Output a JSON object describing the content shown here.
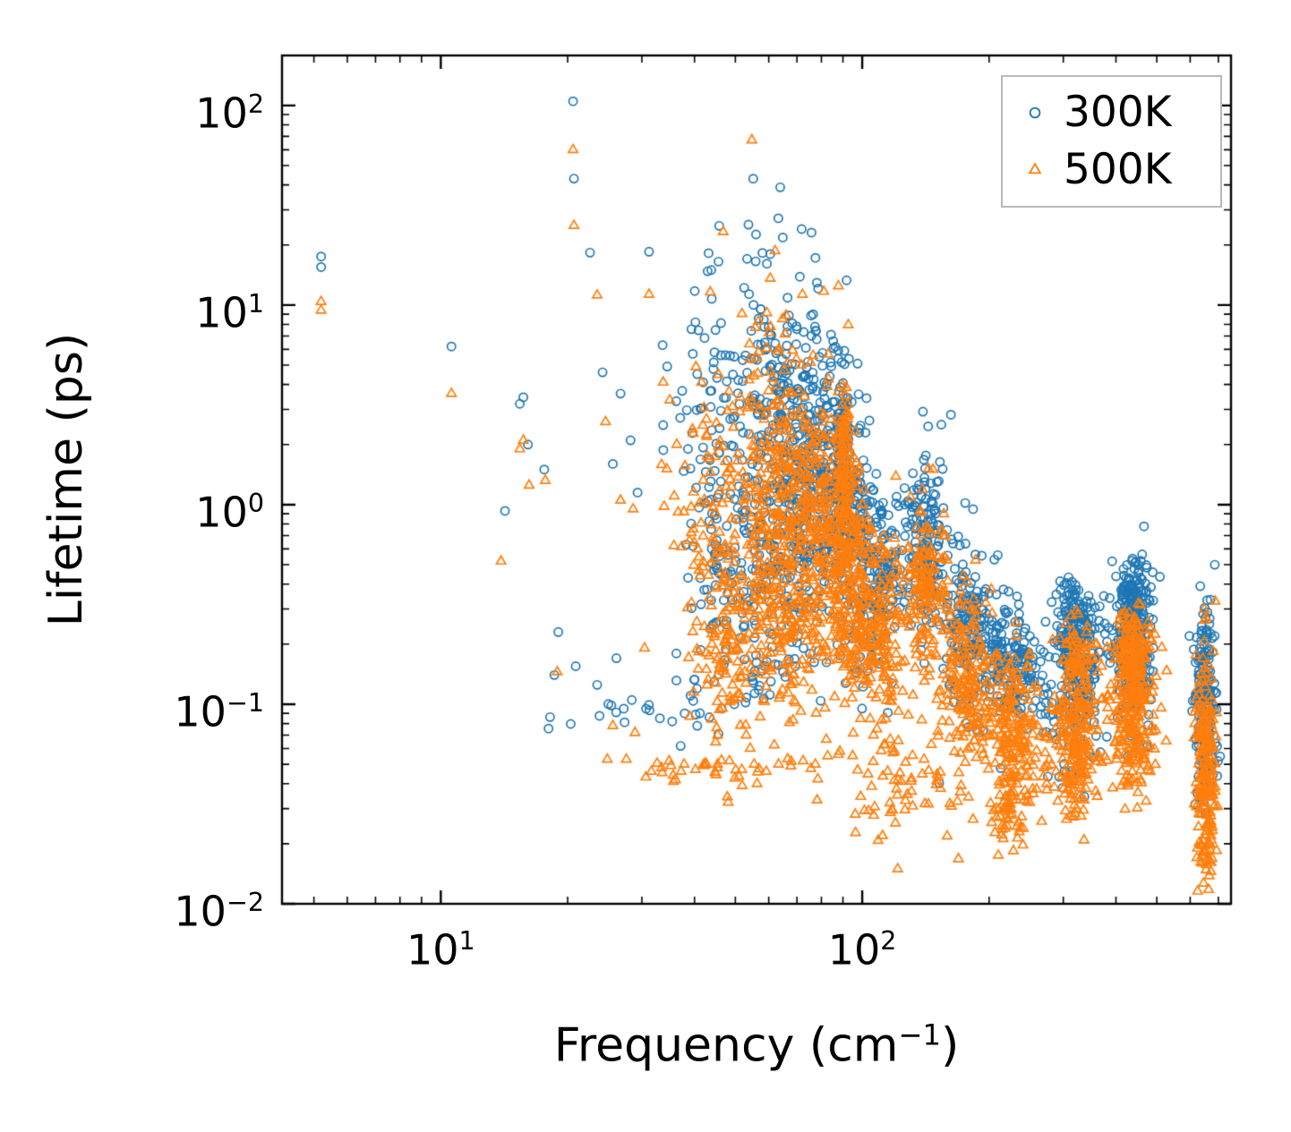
{
  "chart_data": {
    "type": "scatter",
    "title": "",
    "xlabel": "Frequency (cm⁻¹)",
    "xlabel_parts": {
      "pre": "Frequency (cm",
      "sup": "−1",
      "post": ")"
    },
    "ylabel": "Lifetime (ps)",
    "x_scale": "log",
    "y_scale": "log",
    "xlim": [
      4.2,
      750
    ],
    "ylim": [
      0.01,
      178
    ],
    "grid": false,
    "legend": {
      "position": "upper right"
    },
    "x_ticks": [
      {
        "base": "10",
        "exp": "1",
        "value": 10
      },
      {
        "base": "10",
        "exp": "2",
        "value": 100
      }
    ],
    "y_ticks": [
      {
        "base": "10",
        "exp": "2",
        "value": 100
      },
      {
        "base": "10",
        "exp": "1",
        "value": 10
      },
      {
        "base": "10",
        "exp": "0",
        "value": 1
      },
      {
        "base": "10",
        "exp": "−1",
        "value": 0.1
      },
      {
        "base": "10",
        "exp": "−2",
        "value": 0.01
      }
    ],
    "cluster_units": "log10 (cx,sx = log10 frequency center/spread; cy,sy = log10 lifetime center/spread; tilt = d(log y)/d(log x))",
    "series": [
      {
        "name": "300K",
        "color": "#1f77b4",
        "marker": "circle",
        "points": [
          [
            5.2,
            17.5
          ],
          [
            5.2,
            15.5
          ],
          [
            10.6,
            6.2
          ],
          [
            14.2,
            0.93
          ],
          [
            15.4,
            3.2
          ],
          [
            15.7,
            3.45
          ],
          [
            16.1,
            2.0
          ],
          [
            17.6,
            1.5
          ],
          [
            19.0,
            0.23
          ],
          [
            20.6,
            105
          ],
          [
            20.7,
            43
          ],
          [
            22.6,
            18.3
          ],
          [
            24.2,
            4.6
          ],
          [
            25.6,
            1.6
          ],
          [
            26.7,
            3.6
          ],
          [
            28.2,
            2.1
          ],
          [
            29.3,
            1.15
          ],
          [
            31.2,
            18.5
          ],
          [
            33.6,
            6.3
          ],
          [
            36.2,
            3.3
          ],
          [
            38.6,
            1.9
          ],
          [
            40.2,
            8.2
          ],
          [
            43.2,
            18.2
          ],
          [
            46.2,
            5.6
          ],
          [
            60.5,
            18.0
          ],
          [
            18.6,
            0.14
          ],
          [
            20.9,
            0.155
          ],
          [
            23.5,
            0.125
          ],
          [
            26.1,
            0.17
          ],
          [
            28.4,
            0.105
          ],
          [
            30.7,
            0.095
          ],
          [
            33.1,
            0.085
          ],
          [
            35.4,
            0.082
          ],
          [
            37.9,
            0.09
          ],
          [
            40.6,
            0.078
          ],
          [
            43.4,
            0.086
          ],
          [
            46.4,
            0.095
          ],
          [
            49.7,
            0.1
          ],
          [
            53.1,
            0.108
          ],
          [
            56.8,
            0.118
          ],
          [
            60.7,
            0.13
          ],
          [
            64.9,
            0.145
          ],
          [
            69.4,
            0.155
          ]
        ],
        "clusters": [
          {
            "cx": 1.56,
            "sx": 0.17,
            "cy": -0.98,
            "sy": 0.08,
            "n": 26,
            "tilt": 0.45
          },
          {
            "cx": 1.67,
            "sx": 0.05,
            "cy": 0.35,
            "sy": 0.42,
            "n": 110,
            "tilt": 0
          },
          {
            "cx": 1.68,
            "sx": 0.05,
            "cy": -0.45,
            "sy": 0.28,
            "n": 80,
            "tilt": 0
          },
          {
            "cx": 1.79,
            "sx": 0.04,
            "cy": 0.5,
            "sy": 0.38,
            "n": 160,
            "tilt": 0
          },
          {
            "cx": 1.8,
            "sx": 0.04,
            "cy": -0.2,
            "sy": 0.3,
            "n": 120,
            "tilt": 0
          },
          {
            "cx": 1.88,
            "sx": 0.035,
            "cy": 0.2,
            "sy": 0.4,
            "n": 230,
            "tilt": 0
          },
          {
            "cx": 1.96,
            "sx": 0.03,
            "cy": -0.05,
            "sy": 0.33,
            "n": 220,
            "tilt": -1.2
          },
          {
            "cx": 1.955,
            "sx": 0.008,
            "cy": 0.3,
            "sy": 0.25,
            "n": 60,
            "tilt": 0
          },
          {
            "cx": 2.04,
            "sx": 0.03,
            "cy": -0.35,
            "sy": 0.22,
            "n": 170,
            "tilt": -0.8
          },
          {
            "cx": 2.15,
            "sx": 0.025,
            "cy": -0.15,
            "sy": 0.22,
            "n": 150,
            "tilt": 0
          },
          {
            "cx": 2.25,
            "sx": 0.035,
            "cy": -0.62,
            "sy": 0.22,
            "n": 170,
            "tilt": -1
          },
          {
            "cx": 2.36,
            "sx": 0.035,
            "cy": -0.8,
            "sy": 0.15,
            "n": 150,
            "tilt": -0.5
          },
          {
            "cx": 2.43,
            "sx": 0.015,
            "cy": -0.95,
            "sy": 0.12,
            "n": 14,
            "tilt": 0
          },
          {
            "cx": 2.51,
            "sx": 0.028,
            "cy": -0.85,
            "sy": 0.22,
            "n": 220,
            "tilt": 0
          },
          {
            "cx": 2.51,
            "sx": 0.02,
            "cy": -0.52,
            "sy": 0.08,
            "n": 60,
            "tilt": 0
          },
          {
            "cx": 2.64,
            "sx": 0.025,
            "cy": -0.72,
            "sy": 0.2,
            "n": 260,
            "tilt": 0
          },
          {
            "cx": 2.64,
            "sx": 0.018,
            "cy": -0.45,
            "sy": 0.07,
            "n": 70,
            "tilt": 0
          },
          {
            "cx": 2.815,
            "sx": 0.012,
            "cy": -1.0,
            "sy": 0.24,
            "n": 200,
            "tilt": 0
          }
        ]
      },
      {
        "name": "500K",
        "color": "#ff7f0e",
        "marker": "triangle-up",
        "points": [
          [
            5.2,
            10.4
          ],
          [
            5.2,
            9.4
          ],
          [
            10.6,
            3.6
          ],
          [
            13.9,
            0.52
          ],
          [
            15.4,
            1.9
          ],
          [
            15.7,
            2.1
          ],
          [
            16.2,
            1.25
          ],
          [
            17.7,
            1.32
          ],
          [
            18.9,
            0.145
          ],
          [
            20.6,
            60
          ],
          [
            20.7,
            25
          ],
          [
            23.5,
            11.2
          ],
          [
            24.6,
            2.6
          ],
          [
            26.7,
            1.05
          ],
          [
            28.6,
            0.95
          ],
          [
            31.2,
            11.3
          ],
          [
            33.7,
            4.1
          ],
          [
            36.3,
            2.0
          ],
          [
            40.3,
            4.9
          ],
          [
            43.6,
            11.6
          ],
          [
            60.5,
            13.6
          ],
          [
            25.6,
            0.078
          ],
          [
            28.9,
            0.072
          ],
          [
            31.6,
            0.046
          ],
          [
            33.4,
            0.048
          ],
          [
            35.6,
            0.044
          ],
          [
            37.8,
            0.05
          ],
          [
            40.2,
            0.047
          ],
          [
            42.7,
            0.05
          ],
          [
            45.3,
            0.048
          ],
          [
            48.4,
            0.052
          ],
          [
            51.8,
            0.047
          ],
          [
            55.4,
            0.05
          ],
          [
            59.2,
            0.046
          ],
          [
            63.3,
            0.05
          ],
          [
            67.7,
            0.049
          ],
          [
            72.4,
            0.052
          ],
          [
            77.4,
            0.05
          ],
          [
            82.8,
            0.055
          ],
          [
            88.5,
            0.058
          ]
        ],
        "clusters": [
          {
            "cx": 1.65,
            "sx": 0.15,
            "cy": -1.33,
            "sy": 0.06,
            "n": 30,
            "tilt": 0.15
          },
          {
            "cx": 1.66,
            "sx": 0.05,
            "cy": -0.05,
            "sy": 0.42,
            "n": 120,
            "tilt": 0
          },
          {
            "cx": 1.68,
            "sx": 0.05,
            "cy": -0.7,
            "sy": 0.28,
            "n": 110,
            "tilt": 0
          },
          {
            "cx": 1.79,
            "sx": 0.04,
            "cy": 0.2,
            "sy": 0.4,
            "n": 160,
            "tilt": 0
          },
          {
            "cx": 1.8,
            "sx": 0.04,
            "cy": -0.55,
            "sy": 0.3,
            "n": 140,
            "tilt": 0
          },
          {
            "cx": 1.88,
            "sx": 0.035,
            "cy": -0.1,
            "sy": 0.4,
            "n": 260,
            "tilt": 0
          },
          {
            "cx": 1.96,
            "sx": 0.03,
            "cy": -0.3,
            "sy": 0.35,
            "n": 260,
            "tilt": -1.2
          },
          {
            "cx": 1.955,
            "sx": 0.008,
            "cy": 0.15,
            "sy": 0.3,
            "n": 80,
            "tilt": 0
          },
          {
            "cx": 2.04,
            "sx": 0.03,
            "cy": -0.62,
            "sy": 0.22,
            "n": 180,
            "tilt": -0.8
          },
          {
            "cx": 2.1,
            "sx": 0.06,
            "cy": -1.4,
            "sy": 0.15,
            "n": 60,
            "tilt": 0
          },
          {
            "cx": 2.15,
            "sx": 0.025,
            "cy": -0.42,
            "sy": 0.22,
            "n": 150,
            "tilt": 0
          },
          {
            "cx": 2.25,
            "sx": 0.035,
            "cy": -0.9,
            "sy": 0.25,
            "n": 190,
            "tilt": -1
          },
          {
            "cx": 2.36,
            "sx": 0.035,
            "cy": -1.15,
            "sy": 0.22,
            "n": 190,
            "tilt": -0.5
          },
          {
            "cx": 2.345,
            "sx": 0.02,
            "cy": -1.55,
            "sy": 0.12,
            "n": 40,
            "tilt": 0
          },
          {
            "cx": 2.43,
            "sx": 0.015,
            "cy": -1.3,
            "sy": 0.15,
            "n": 14,
            "tilt": 0
          },
          {
            "cx": 2.51,
            "sx": 0.028,
            "cy": -1.15,
            "sy": 0.22,
            "n": 220,
            "tilt": 0
          },
          {
            "cx": 2.51,
            "sx": 0.02,
            "cy": -0.78,
            "sy": 0.08,
            "n": 50,
            "tilt": 0
          },
          {
            "cx": 2.64,
            "sx": 0.025,
            "cy": -1.02,
            "sy": 0.22,
            "n": 260,
            "tilt": 0
          },
          {
            "cx": 2.64,
            "sx": 0.018,
            "cy": -0.68,
            "sy": 0.08,
            "n": 60,
            "tilt": 0
          },
          {
            "cx": 2.815,
            "sx": 0.012,
            "cy": -1.35,
            "sy": 0.28,
            "n": 220,
            "tilt": 0
          }
        ]
      }
    ]
  }
}
